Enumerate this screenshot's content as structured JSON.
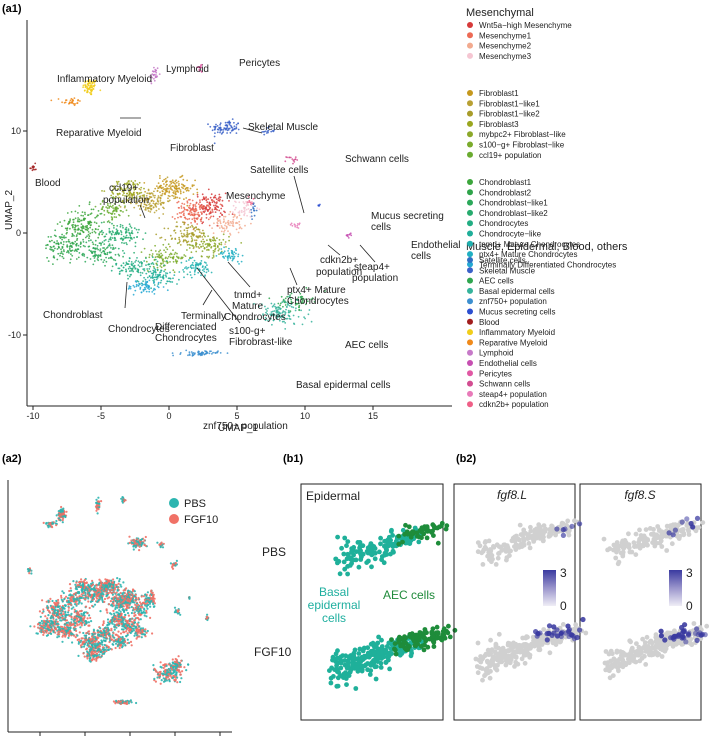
{
  "panels": {
    "a1": "(a1)",
    "a2": "(a2)",
    "b1": "(b1)",
    "b2": "(b2)"
  },
  "colors": {
    "grey_cell": "#d0d0d0",
    "purple_high": "#3a3aa0",
    "purple_low": "#e9e6f3",
    "pbs": "#2cb5b0",
    "fgf10": "#f07166"
  },
  "chart_data": [
    {
      "id": "a1",
      "type": "scatter",
      "xlabel": "UMAP_1",
      "ylabel": "UMAP_2",
      "xlim": [
        -11,
        16
      ],
      "ylim": [
        -13,
        18
      ],
      "xticks": [
        -10,
        -5,
        0,
        5,
        10,
        15
      ],
      "yticks": [
        -10,
        0,
        10
      ],
      "grid": false,
      "legend_position": "right",
      "legend_groups": [
        {
          "title": "Mesenchymal",
          "items": [
            {
              "name": "Wnt5a−high Mesenchyme",
              "color": "#d63a3a"
            },
            {
              "name": "Mesenchyme1",
              "color": "#ec6a55"
            },
            {
              "name": "Mesenchyme2",
              "color": "#f2aa8f"
            },
            {
              "name": "Mesenchyme3",
              "color": "#f5c6d2"
            }
          ]
        },
        {
          "items": [
            {
              "name": "Fibroblast1",
              "color": "#c5981d"
            },
            {
              "name": "Fibroblast1−like1",
              "color": "#b8a033"
            },
            {
              "name": "Fibroblast1−like2",
              "color": "#a89c2a"
            },
            {
              "name": "Fibroblast3",
              "color": "#9aa61f"
            },
            {
              "name": "mybpc2+ Fibroblast−like",
              "color": "#8ca82a"
            },
            {
              "name": "s100−g+ Fibroblast−like",
              "color": "#7bab2c"
            },
            {
              "name": "ccl19+ population",
              "color": "#6aab30"
            }
          ]
        },
        {
          "items": [
            {
              "name": "Chondroblast1",
              "color": "#3ca63c"
            },
            {
              "name": "Chondroblast2",
              "color": "#2fa44a"
            },
            {
              "name": "Chondroblast−like1",
              "color": "#2ba85a"
            },
            {
              "name": "Chondroblast−like2",
              "color": "#27ab6e"
            },
            {
              "name": "Chondrocytes",
              "color": "#22ad83"
            },
            {
              "name": "Chondrocyte−like",
              "color": "#1fae99"
            },
            {
              "name": "tnmd+ Mature Chondrocytes",
              "color": "#1fb0af"
            },
            {
              "name": "ptx4+ Mature Chondrocytes",
              "color": "#20afc2"
            },
            {
              "name": "Terminally Differentiated Chondrocytes",
              "color": "#24a8d2"
            }
          ]
        },
        {
          "title": "Muscle, Epidermal, Blood, others",
          "items": [
            {
              "name": "Satellite cells",
              "color": "#2f6fc2"
            },
            {
              "name": "Skeletal Muscle",
              "color": "#3b62c8"
            },
            {
              "name": "AEC cells",
              "color": "#2fa64f"
            },
            {
              "name": "Basal epidermal cells",
              "color": "#35b39b"
            },
            {
              "name": "znf750+ population",
              "color": "#3c8fcf"
            },
            {
              "name": "Mucus secreting cells",
              "color": "#2c4fd0"
            },
            {
              "name": "Blood",
              "color": "#a11d1d"
            },
            {
              "name": "Inflammatory Myeloid",
              "color": "#f1cd1a"
            },
            {
              "name": "Reparative Myeloid",
              "color": "#f08a1a"
            },
            {
              "name": "Lymphoid",
              "color": "#c679c8"
            },
            {
              "name": "Endothelial cells",
              "color": "#c64fb1"
            },
            {
              "name": "Pericytes",
              "color": "#e058a4"
            },
            {
              "name": "Schwann cells",
              "color": "#d24d91"
            },
            {
              "name": "steap4+ population",
              "color": "#e87ab9"
            },
            {
              "name": "cdkn2b+ population",
              "color": "#ef5f87"
            }
          ]
        }
      ],
      "annotations": [
        {
          "text": "Inflammatory Myeloid"
        },
        {
          "text": "Lymphoid"
        },
        {
          "text": "Pericytes"
        },
        {
          "text": "Reparative Myeloid"
        },
        {
          "text": "Skeletal Muscle"
        },
        {
          "text": "Blood"
        },
        {
          "text": "Fibroblast"
        },
        {
          "text": "Satellite cells"
        },
        {
          "text": "Schwann cells"
        },
        {
          "text": "ccl19+"
        },
        {
          "text": "population"
        },
        {
          "text": "Mesenchyme"
        },
        {
          "text": "Mucus secreting"
        },
        {
          "text": "cells"
        },
        {
          "text": "Endothelial"
        },
        {
          "text": "cells"
        },
        {
          "text": "cdkn2b+"
        },
        {
          "text": "population"
        },
        {
          "text": "steap4+"
        },
        {
          "text": "population"
        },
        {
          "text": "ptx4+ Mature"
        },
        {
          "text": "Chondrocytes"
        },
        {
          "text": "tnmd+"
        },
        {
          "text": "Mature"
        },
        {
          "text": "Chondrocytes"
        },
        {
          "text": "Chondroblast"
        },
        {
          "text": "Chondrocytes"
        },
        {
          "text": "Terminally"
        },
        {
          "text": "Differenciated"
        },
        {
          "text": "Chondrocytes"
        },
        {
          "text": "s100-g+"
        },
        {
          "text": "Fibrobrast-like"
        },
        {
          "text": "AEC cells"
        },
        {
          "text": "Basal epidermal cells"
        },
        {
          "text": "znf750+ population"
        }
      ],
      "clusters": [
        {
          "name": "Inflammatory Myeloid",
          "center": [
            -5.8,
            14.3
          ],
          "spread": [
            0.45,
            0.7
          ],
          "n": 70
        },
        {
          "name": "Reparative Myeloid",
          "center": [
            -7.2,
            12.9
          ],
          "spread": [
            0.6,
            0.35
          ],
          "n": 30
        },
        {
          "name": "Lymphoid",
          "center": [
            -1.1,
            15.5
          ],
          "spread": [
            0.3,
            0.8
          ],
          "n": 30
        },
        {
          "name": "Pericytes",
          "center": [
            2.3,
            16.2
          ],
          "spread": [
            0.25,
            0.4
          ],
          "n": 15
        },
        {
          "name": "Skeletal Muscle",
          "center": [
            4.2,
            10.3
          ],
          "spread": [
            0.9,
            0.6
          ],
          "n": 80
        },
        {
          "name": "Skeletal Muscle",
          "center": [
            7.2,
            10.0
          ],
          "spread": [
            0.5,
            0.3
          ],
          "n": 15
        },
        {
          "name": "Schwann cells",
          "center": [
            9.0,
            7.2
          ],
          "spread": [
            0.3,
            0.35
          ],
          "n": 15
        },
        {
          "name": "Blood",
          "center": [
            -10.0,
            6.4
          ],
          "spread": [
            0.2,
            0.3
          ],
          "n": 12
        },
        {
          "name": "Mucus secreting cells",
          "center": [
            11.0,
            2.7
          ],
          "spread": [
            0.1,
            0.15
          ],
          "n": 5
        },
        {
          "name": "Endothelial cells",
          "center": [
            13.3,
            -0.2
          ],
          "spread": [
            0.2,
            0.3
          ],
          "n": 10
        },
        {
          "name": "steap4+ population",
          "center": [
            9.4,
            0.8
          ],
          "spread": [
            0.3,
            0.5
          ],
          "n": 12
        },
        {
          "name": "Satellite cells",
          "center": [
            6.2,
            2.2
          ],
          "spread": [
            0.2,
            0.6
          ],
          "n": 15
        },
        {
          "name": "cdkn2b+ population",
          "center": [
            6.0,
            3.2
          ],
          "spread": [
            0.3,
            0.4
          ],
          "n": 10
        },
        {
          "name": "Wnt5a−high Mesenchyme",
          "center": [
            3.0,
            2.6
          ],
          "spread": [
            1.0,
            1.1
          ],
          "n": 120
        },
        {
          "name": "Mesenchyme1",
          "center": [
            1.8,
            2.0
          ],
          "spread": [
            1.1,
            1.0
          ],
          "n": 120
        },
        {
          "name": "Mesenchyme2",
          "center": [
            4.4,
            1.0
          ],
          "spread": [
            0.9,
            0.9
          ],
          "n": 70
        },
        {
          "name": "Mesenchyme3",
          "center": [
            5.6,
            2.4
          ],
          "spread": [
            0.6,
            0.7
          ],
          "n": 40
        },
        {
          "name": "Fibroblast1",
          "center": [
            0.2,
            4.3
          ],
          "spread": [
            1.4,
            0.9
          ],
          "n": 140
        },
        {
          "name": "Fibroblast1−like1",
          "center": [
            -1.5,
            3.2
          ],
          "spread": [
            1.4,
            1.1
          ],
          "n": 140
        },
        {
          "name": "Fibroblast1−like2",
          "center": [
            1.5,
            -0.3
          ],
          "spread": [
            1.3,
            1.1
          ],
          "n": 110
        },
        {
          "name": "Fibroblast3",
          "center": [
            -3.0,
            4.2
          ],
          "spread": [
            1.2,
            0.9
          ],
          "n": 100
        },
        {
          "name": "mybpc2+ Fibroblast−like",
          "center": [
            3.0,
            -1.2
          ],
          "spread": [
            1.2,
            0.9
          ],
          "n": 90
        },
        {
          "name": "s100−g+ Fibroblast−like",
          "center": [
            -0.2,
            -2.4
          ],
          "spread": [
            1.3,
            0.9
          ],
          "n": 100
        },
        {
          "name": "ccl19+ population",
          "center": [
            -4.2,
            2.3
          ],
          "spread": [
            0.9,
            0.8
          ],
          "n": 70
        },
        {
          "name": "Chondroblast1",
          "center": [
            -6.3,
            0.8
          ],
          "spread": [
            1.3,
            1.4
          ],
          "n": 150
        },
        {
          "name": "Chondroblast2",
          "center": [
            -7.7,
            -1.3
          ],
          "spread": [
            1.2,
            1.1
          ],
          "n": 120
        },
        {
          "name": "Chondroblast−like1",
          "center": [
            -5.2,
            -1.8
          ],
          "spread": [
            1.2,
            1.0
          ],
          "n": 110
        },
        {
          "name": "Chondroblast−like2",
          "center": [
            -3.5,
            -0.2
          ],
          "spread": [
            1.2,
            1.1
          ],
          "n": 110
        },
        {
          "name": "Chondrocytes",
          "center": [
            -2.4,
            -3.3
          ],
          "spread": [
            1.3,
            0.8
          ],
          "n": 100
        },
        {
          "name": "Chondrocyte−like",
          "center": [
            -0.8,
            -4.3
          ],
          "spread": [
            1.3,
            0.7
          ],
          "n": 80
        },
        {
          "name": "tnmd+ Mature Chondrocytes",
          "center": [
            2.0,
            -3.4
          ],
          "spread": [
            1.0,
            0.7
          ],
          "n": 70
        },
        {
          "name": "ptx4+ Mature Chondrocytes",
          "center": [
            4.6,
            -2.1
          ],
          "spread": [
            0.8,
            0.6
          ],
          "n": 50
        },
        {
          "name": "Terminally Differentiated Chondrocytes",
          "center": [
            -1.8,
            -5.3
          ],
          "spread": [
            1.1,
            0.6
          ],
          "n": 60
        },
        {
          "name": "AEC cells",
          "center": [
            9.3,
            -6.6
          ],
          "spread": [
            1.0,
            0.7
          ],
          "n": 60
        },
        {
          "name": "Basal epidermal cells",
          "center": [
            8.2,
            -7.9
          ],
          "spread": [
            1.5,
            1.0
          ],
          "n": 120
        },
        {
          "name": "znf750+ population",
          "center": [
            2.3,
            -11.8
          ],
          "spread": [
            1.1,
            0.2
          ],
          "n": 60
        }
      ]
    },
    {
      "id": "a2",
      "type": "scatter",
      "legend_position": "top-right",
      "series": [
        {
          "name": "PBS",
          "color": "#2cb5b0"
        },
        {
          "name": "FGF10",
          "color": "#f07166"
        }
      ]
    },
    {
      "id": "b1",
      "type": "scatter",
      "title": "Epidermal",
      "row_labels": [
        "PBS",
        "FGF10"
      ],
      "annotations": [
        {
          "text": "Basal",
          "color": "#1faf9f"
        },
        {
          "text": "epidermal",
          "color": "#1faf9f"
        },
        {
          "text": "cells",
          "color": "#1faf9f"
        },
        {
          "text": "AEC cells",
          "color": "#1f8a3a"
        }
      ],
      "series": [
        {
          "name": "Basal epidermal cells",
          "color": "#1fb09a"
        },
        {
          "name": "AEC cells",
          "color": "#1e8c3a"
        }
      ]
    },
    {
      "id": "b2",
      "type": "scatter",
      "panels": [
        {
          "title": "fgf8.L"
        },
        {
          "title": "fgf8.S"
        }
      ],
      "colorbar": {
        "min": 0,
        "max": 3,
        "ticks": [
          "3",
          "0"
        ]
      }
    }
  ]
}
